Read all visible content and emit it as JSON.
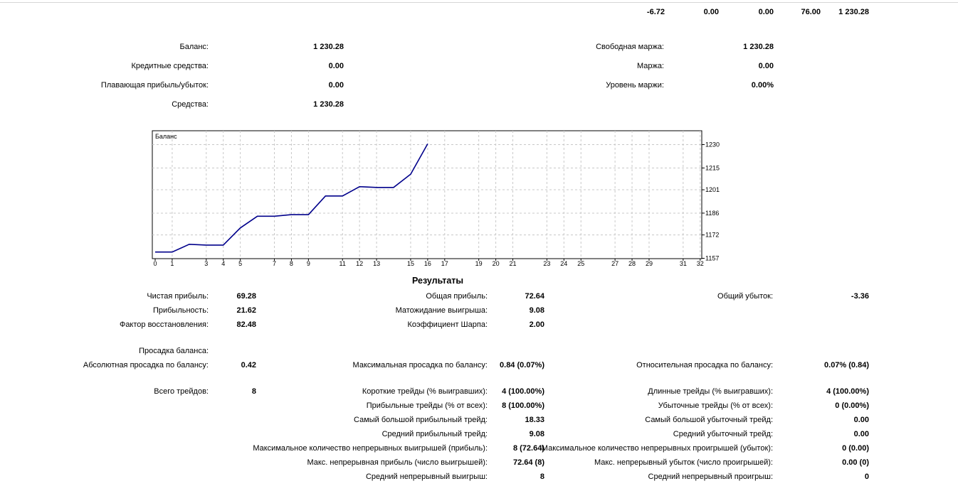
{
  "summary_row": [
    "-6.72",
    "0.00",
    "0.00",
    "76.00",
    "1 230.28"
  ],
  "account": {
    "balance_label": "Баланс:",
    "balance_value": "1 230.28",
    "credit_label": "Кредитные средства:",
    "credit_value": "0.00",
    "floating_label": "Плавающая прибыль/убыток:",
    "floating_value": "0.00",
    "equity_label": "Средства:",
    "equity_value": "1 230.28",
    "free_margin_label": "Свободная маржа:",
    "free_margin_value": "1 230.28",
    "margin_label": "Маржа:",
    "margin_value": "0.00",
    "margin_level_label": "Уровень маржи:",
    "margin_level_value": "0.00%"
  },
  "chart_data": {
    "type": "line",
    "title": "Баланс",
    "x_ticks": [
      0,
      1,
      3,
      4,
      5,
      7,
      8,
      9,
      11,
      12,
      13,
      15,
      16,
      17,
      19,
      20,
      21,
      23,
      24,
      25,
      27,
      28,
      29,
      31,
      32
    ],
    "y_ticks": [
      1157,
      1172,
      1186,
      1201,
      1215,
      1230
    ],
    "xlim": [
      0,
      32
    ],
    "ylim": [
      1157,
      1237
    ],
    "grid": true,
    "y_axis_side": "right",
    "series": [
      {
        "color": "#00008b",
        "x": [
          0,
          1,
          2,
          3,
          4,
          5,
          6,
          7,
          8,
          9,
          10,
          11,
          12,
          13,
          14,
          15,
          16
        ],
        "y": [
          1161.0,
          1161.0,
          1166.0,
          1165.5,
          1165.5,
          1176.5,
          1184.0,
          1184.0,
          1185.0,
          1185.0,
          1197.0,
          1197.0,
          1203.0,
          1202.5,
          1202.5,
          1211.0,
          1230.5
        ]
      }
    ]
  },
  "results": {
    "title": "Результаты",
    "net_profit_label": "Чистая прибыль:",
    "net_profit_value": "69.28",
    "gross_profit_label": "Общая прибыль:",
    "gross_profit_value": "72.64",
    "gross_loss_label": "Общий убыток:",
    "gross_loss_value": "-3.36",
    "profitability_label": "Прибыльность:",
    "profitability_value": "21.62",
    "expected_payoff_label": "Матожидание выигрыша:",
    "expected_payoff_value": "9.08",
    "recovery_factor_label": "Фактор восстановления:",
    "recovery_factor_value": "82.48",
    "sharpe_label": "Коэффициент Шарпа:",
    "sharpe_value": "2.00",
    "drawdown_header": "Просадка баланса:",
    "abs_drawdown_label": "Абсолютная просадка по балансу:",
    "abs_drawdown_value": "0.42",
    "max_drawdown_label": "Максимальная просадка по балансу:",
    "max_drawdown_value": "0.84 (0.07%)",
    "rel_drawdown_label": "Относительная просадка по балансу:",
    "rel_drawdown_value": "0.07% (0.84)",
    "total_trades_label": "Всего трейдов:",
    "total_trades_value": "8",
    "short_trades_label": "Короткие трейды (% выигравших):",
    "short_trades_value": "4 (100.00%)",
    "long_trades_label": "Длинные трейды (% выигравших):",
    "long_trades_value": "4 (100.00%)",
    "profit_trades_label": "Прибыльные трейды (% от всех):",
    "profit_trades_value": "8 (100.00%)",
    "loss_trades_label": "Убыточные трейды (% от всех):",
    "loss_trades_value": "0 (0.00%)",
    "largest_profit_label": "Самый большой прибыльный трейд:",
    "largest_profit_value": "18.33",
    "largest_loss_label": "Самый большой убыточный трейд:",
    "largest_loss_value": "0.00",
    "avg_profit_label": "Средний прибыльный трейд:",
    "avg_profit_value": "9.08",
    "avg_loss_label": "Средний убыточный трейд:",
    "avg_loss_value": "0.00",
    "max_consec_wins_label": "Максимальное количество непрерывных выигрышей (прибыль):",
    "max_consec_wins_value": "8 (72.64)",
    "max_consec_losses_label": "Максимальное количество непрерывных проигрышей (убыток):",
    "max_consec_losses_value": "0 (0.00)",
    "max_consec_profit_label": "Макс. непрерывная прибыль (число выигрышей):",
    "max_consec_profit_value": "72.64 (8)",
    "max_consec_loss_label": "Макс. непрерывный убыток (число проигрышей):",
    "max_consec_loss_value": "0.00 (0)",
    "avg_consec_wins_label": "Средний непрерывный выигрыш:",
    "avg_consec_wins_value": "8",
    "avg_consec_losses_label": "Средний непрерывный проигрыш:",
    "avg_consec_losses_value": "0"
  }
}
